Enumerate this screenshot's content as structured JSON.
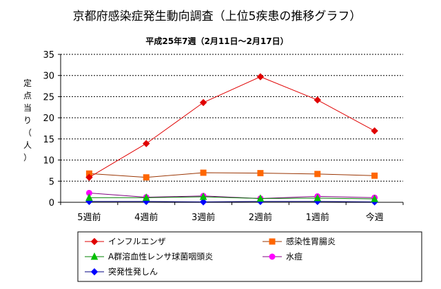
{
  "chart_data": {
    "type": "line",
    "title": "京都府感染症発生動向調査（上位5疾患の推移グラフ）",
    "subtitle": "平成25年7週（2月11日～2月17日）",
    "ylabel": [
      "定",
      "点",
      "当",
      "り",
      "（",
      "人",
      "）"
    ],
    "ylim": [
      0,
      35
    ],
    "yticks": [
      0,
      5,
      10,
      15,
      20,
      25,
      30,
      35
    ],
    "grid": true,
    "legend_position": "bottom",
    "categories": [
      "5週前",
      "4週前",
      "3週前",
      "2週前",
      "1週前",
      "今週"
    ],
    "series": [
      {
        "name": "インフルエンザ",
        "color": "#e00000",
        "marker": "diamond",
        "marker_color": "#e00000",
        "values": [
          5.9,
          13.9,
          23.6,
          29.7,
          24.2,
          16.9
        ]
      },
      {
        "name": "感染性胃腸炎",
        "color": "#993300",
        "marker": "square",
        "marker_color": "#ff6600",
        "values": [
          6.8,
          5.9,
          7.0,
          6.9,
          6.7,
          6.3
        ]
      },
      {
        "name": "A群溶血性レンサ球菌咽頭炎",
        "color": "#008000",
        "marker": "triangle",
        "marker_color": "#00c000",
        "values": [
          1.1,
          1.1,
          1.3,
          0.9,
          1.0,
          0.8
        ]
      },
      {
        "name": "水痘",
        "color": "#800080",
        "marker": "circle",
        "marker_color": "#ff00ff",
        "values": [
          2.2,
          1.2,
          1.5,
          0.9,
          1.4,
          1.1
        ]
      },
      {
        "name": "突発性発しん",
        "color": "#000080",
        "marker": "diamond",
        "marker_color": "#0000ff",
        "values": [
          0.2,
          0.2,
          0.1,
          0.2,
          0.2,
          0.1
        ]
      }
    ]
  }
}
